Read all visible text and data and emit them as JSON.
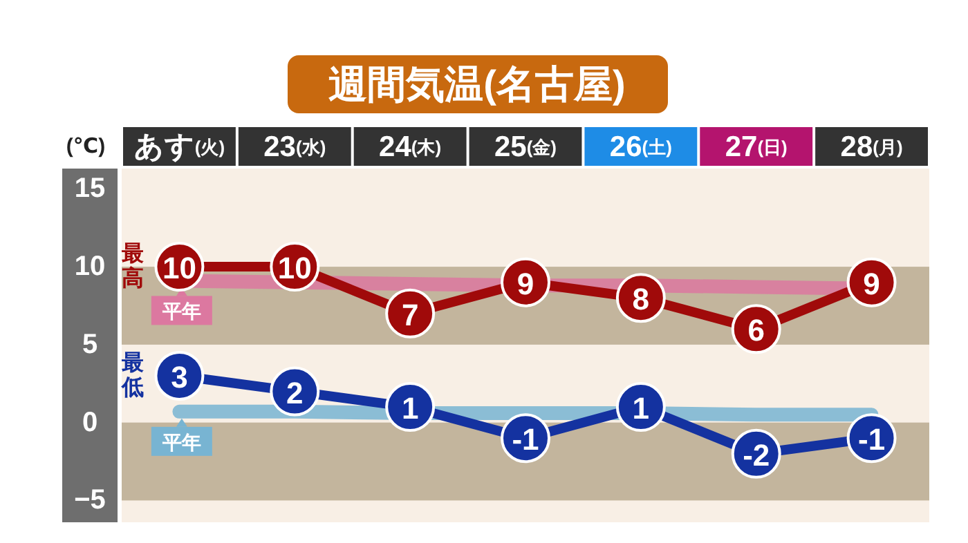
{
  "chart_data": {
    "type": "line",
    "title": "週間気温(名古屋)",
    "ylabel": "(℃)",
    "categories": [
      "あす(火)",
      "23(水)",
      "24(木)",
      "25(金)",
      "26(土)",
      "27(日)",
      "28(月)"
    ],
    "series": [
      {
        "name": "平年",
        "color": "#dc78a0",
        "values": [
          9.1,
          9.0,
          8.9,
          8.8,
          8.8,
          8.7,
          8.6
        ],
        "line_style": "solid",
        "marker": "none"
      },
      {
        "name": "平年",
        "color": "#78b4d2",
        "values": [
          0.7,
          0.7,
          0.6,
          0.6,
          0.6,
          0.5,
          0.5
        ],
        "line_style": "solid",
        "marker": "none"
      },
      {
        "name": "最高",
        "color": "#a00a0a",
        "values": [
          10,
          10,
          7,
          9,
          8,
          6,
          9
        ],
        "value_labels": [
          "10",
          "10",
          "7",
          "9",
          "8",
          "6",
          "9"
        ],
        "marker": "circle"
      },
      {
        "name": "最低",
        "color": "#1432a0",
        "values": [
          3,
          2,
          1,
          -1,
          1,
          -2,
          -1
        ],
        "value_labels": [
          "3",
          "2",
          "1",
          "-1",
          "1",
          "-2",
          "-1"
        ],
        "marker": "circle"
      }
    ],
    "ylim": [
      -6.4,
      16.3
    ],
    "yticks": [
      15,
      10,
      5,
      0,
      {
        "value": -5,
        "label": "−5"
      }
    ],
    "bands": [
      {
        "axis": "y",
        "from": 5,
        "to": 10,
        "color": "#c3b59d"
      },
      {
        "axis": "y",
        "from": -5,
        "to": 0,
        "color": "#c3b59d"
      }
    ],
    "grid": false,
    "legend": "left"
  }
}
